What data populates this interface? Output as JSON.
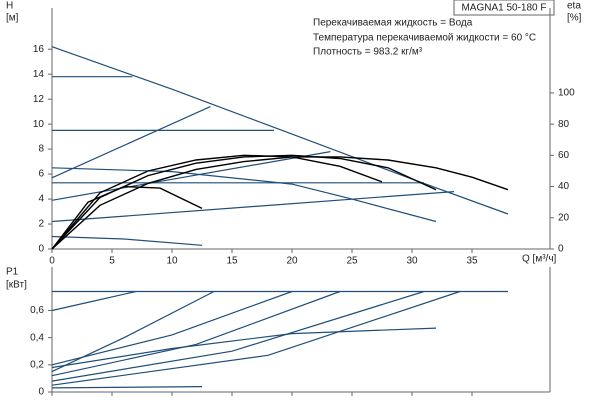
{
  "chart_data": [
    {
      "type": "line",
      "title": "MAGNA1 50-180 F",
      "annotations": [
        "Перекачиваемая жидкость = Вода",
        "Температура перекачиваемой жидкости = 60 °C",
        "Плотность = 983.2 кг/м³"
      ],
      "ylabel": "H",
      "yunit": "[м]",
      "y2label": "eta",
      "y2unit": "[%]",
      "xlabel": "Q [м³/ч]",
      "xlim": [
        0,
        41.5
      ],
      "xticks": [
        0,
        5,
        10,
        15,
        20,
        25,
        30,
        35
      ],
      "ylim": [
        0,
        19.3
      ],
      "yticks": [
        0,
        2,
        4,
        6,
        8,
        10,
        12,
        14,
        16
      ],
      "y2lim": [
        0,
        154.4
      ],
      "y2ticks": [
        0,
        20,
        40,
        60,
        80,
        100
      ],
      "series": [
        {
          "color": "#1f4e79",
          "x": [
            0,
            10,
            20,
            30,
            38
          ],
          "values": [
            16.2,
            12.8,
            9.2,
            5.6,
            2.8
          ]
        },
        {
          "color": "#1f4e79",
          "x": [
            0,
            6.7
          ],
          "values": [
            13.8,
            13.8
          ]
        },
        {
          "color": "#1f4e79",
          "x": [
            0,
            18.5
          ],
          "values": [
            9.5,
            9.5
          ]
        },
        {
          "color": "#1f4e79",
          "x": [
            0,
            13.2
          ],
          "values": [
            5.7,
            11.4
          ]
        },
        {
          "color": "#1f4e79",
          "x": [
            0,
            23.2
          ],
          "values": [
            3.9,
            7.8
          ]
        },
        {
          "color": "#1f4e79",
          "x": [
            0,
            31
          ],
          "values": [
            5.3,
            5.3
          ]
        },
        {
          "color": "#1f4e79",
          "x": [
            0,
            33.5
          ],
          "values": [
            2.2,
            4.6
          ]
        },
        {
          "color": "#1f4e79",
          "x": [
            0,
            10,
            20,
            25,
            32
          ],
          "values": [
            6.5,
            6.2,
            5.2,
            4.0,
            2.2
          ]
        },
        {
          "color": "#1f4e79",
          "x": [
            0,
            6,
            12.5
          ],
          "values": [
            1.0,
            0.8,
            0.3
          ]
        },
        {
          "color": "#000000",
          "axis": "y2",
          "x": [
            0,
            4,
            8,
            12,
            16,
            20,
            24,
            28,
            32,
            35,
            38
          ],
          "values": [
            0,
            28,
            42,
            51,
            56,
            59,
            59,
            57,
            52,
            46,
            38
          ]
        },
        {
          "color": "#000000",
          "axis": "y2",
          "x": [
            0,
            4,
            8,
            12,
            16,
            20,
            24,
            28,
            32
          ],
          "values": [
            0,
            33,
            47,
            55,
            59,
            60,
            58,
            52,
            38
          ]
        },
        {
          "color": "#000000",
          "axis": "y2",
          "x": [
            0,
            4,
            8,
            12,
            16,
            20,
            24,
            27.5
          ],
          "values": [
            0,
            36,
            50,
            57,
            60,
            59,
            53,
            43
          ]
        },
        {
          "color": "#000000",
          "axis": "y2",
          "x": [
            0,
            3,
            6,
            9,
            12.5
          ],
          "values": [
            0,
            30,
            40,
            39,
            26
          ]
        }
      ]
    },
    {
      "type": "line",
      "ylabel": "P1",
      "yunit": "[кВт]",
      "xlim": [
        0,
        41.5
      ],
      "xticks": [
        0,
        5,
        10,
        15,
        20,
        25,
        30,
        35
      ],
      "ylim": [
        0,
        0.92
      ],
      "yticks": [
        0,
        {
          "value": 0.2,
          "label": "0,2"
        },
        {
          "value": 0.4,
          "label": "0,4"
        },
        {
          "value": 0.6,
          "label": "0,6"
        }
      ],
      "series": [
        {
          "color": "#1f4e79",
          "x": [
            0,
            38
          ],
          "values": [
            0.74,
            0.74
          ]
        },
        {
          "color": "#1f4e79",
          "x": [
            0,
            3.5,
            7
          ],
          "values": [
            0.6,
            0.67,
            0.74
          ]
        },
        {
          "color": "#1f4e79",
          "x": [
            0,
            6,
            13.5
          ],
          "values": [
            0.15,
            0.4,
            0.74
          ]
        },
        {
          "color": "#1f4e79",
          "x": [
            0,
            10,
            20
          ],
          "values": [
            0.2,
            0.42,
            0.74
          ]
        },
        {
          "color": "#1f4e79",
          "x": [
            0,
            12,
            24
          ],
          "values": [
            0.12,
            0.35,
            0.74
          ]
        },
        {
          "color": "#1f4e79",
          "x": [
            0,
            15,
            31
          ],
          "values": [
            0.08,
            0.3,
            0.74
          ]
        },
        {
          "color": "#1f4e79",
          "x": [
            0,
            18,
            34
          ],
          "values": [
            0.05,
            0.27,
            0.74
          ]
        },
        {
          "color": "#1f4e79",
          "x": [
            0,
            10,
            20,
            32
          ],
          "values": [
            0.18,
            0.32,
            0.43,
            0.47
          ]
        },
        {
          "color": "#1f4e79",
          "x": [
            0,
            12.5
          ],
          "values": [
            0.03,
            0.04
          ]
        }
      ]
    }
  ]
}
